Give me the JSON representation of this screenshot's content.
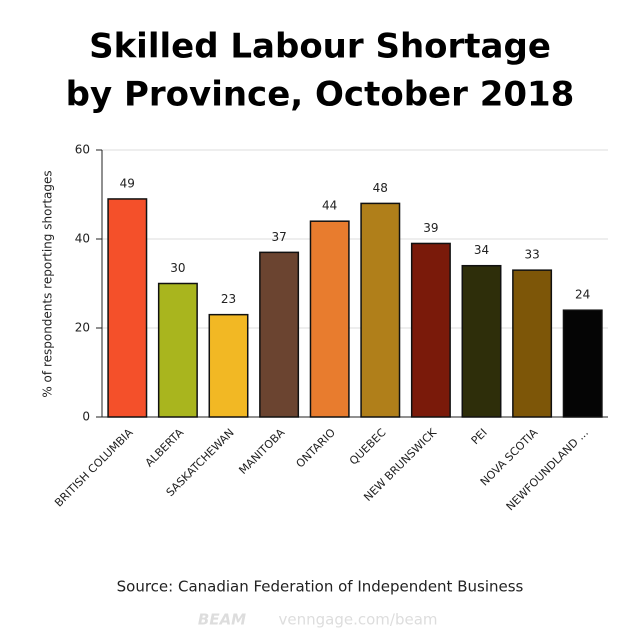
{
  "chart_data": {
    "type": "bar",
    "title_lines": [
      "Skilled Labour Shortage",
      "by Province, October 2018"
    ],
    "y_label": "% of respondents reporting shortages",
    "categories": [
      "BRITISH COLUMBIA",
      "ALBERTA",
      "SASKATCHEWAN",
      "MANITOBA",
      "ONTARIO",
      "QUEBEC",
      "NEW BRUNSWICK",
      "PEI",
      "NOVA SCOTIA",
      "NEWFOUNDLAND ..."
    ],
    "values": [
      49,
      30,
      23,
      37,
      44,
      48,
      39,
      34,
      33,
      24
    ],
    "colors": [
      "#f4502a",
      "#a9b51e",
      "#f2b824",
      "#6b4430",
      "#e87c2e",
      "#b07f1a",
      "#7a1a0a",
      "#2e2e0a",
      "#7d5608",
      "#050505"
    ],
    "ylim": [
      0,
      60
    ],
    "yticks": [
      0,
      20,
      40,
      60
    ],
    "grid": true,
    "source": "Source: Canadian Federation of Independent Business",
    "watermark": [
      "BEAM",
      "venngage.com/beam"
    ]
  }
}
